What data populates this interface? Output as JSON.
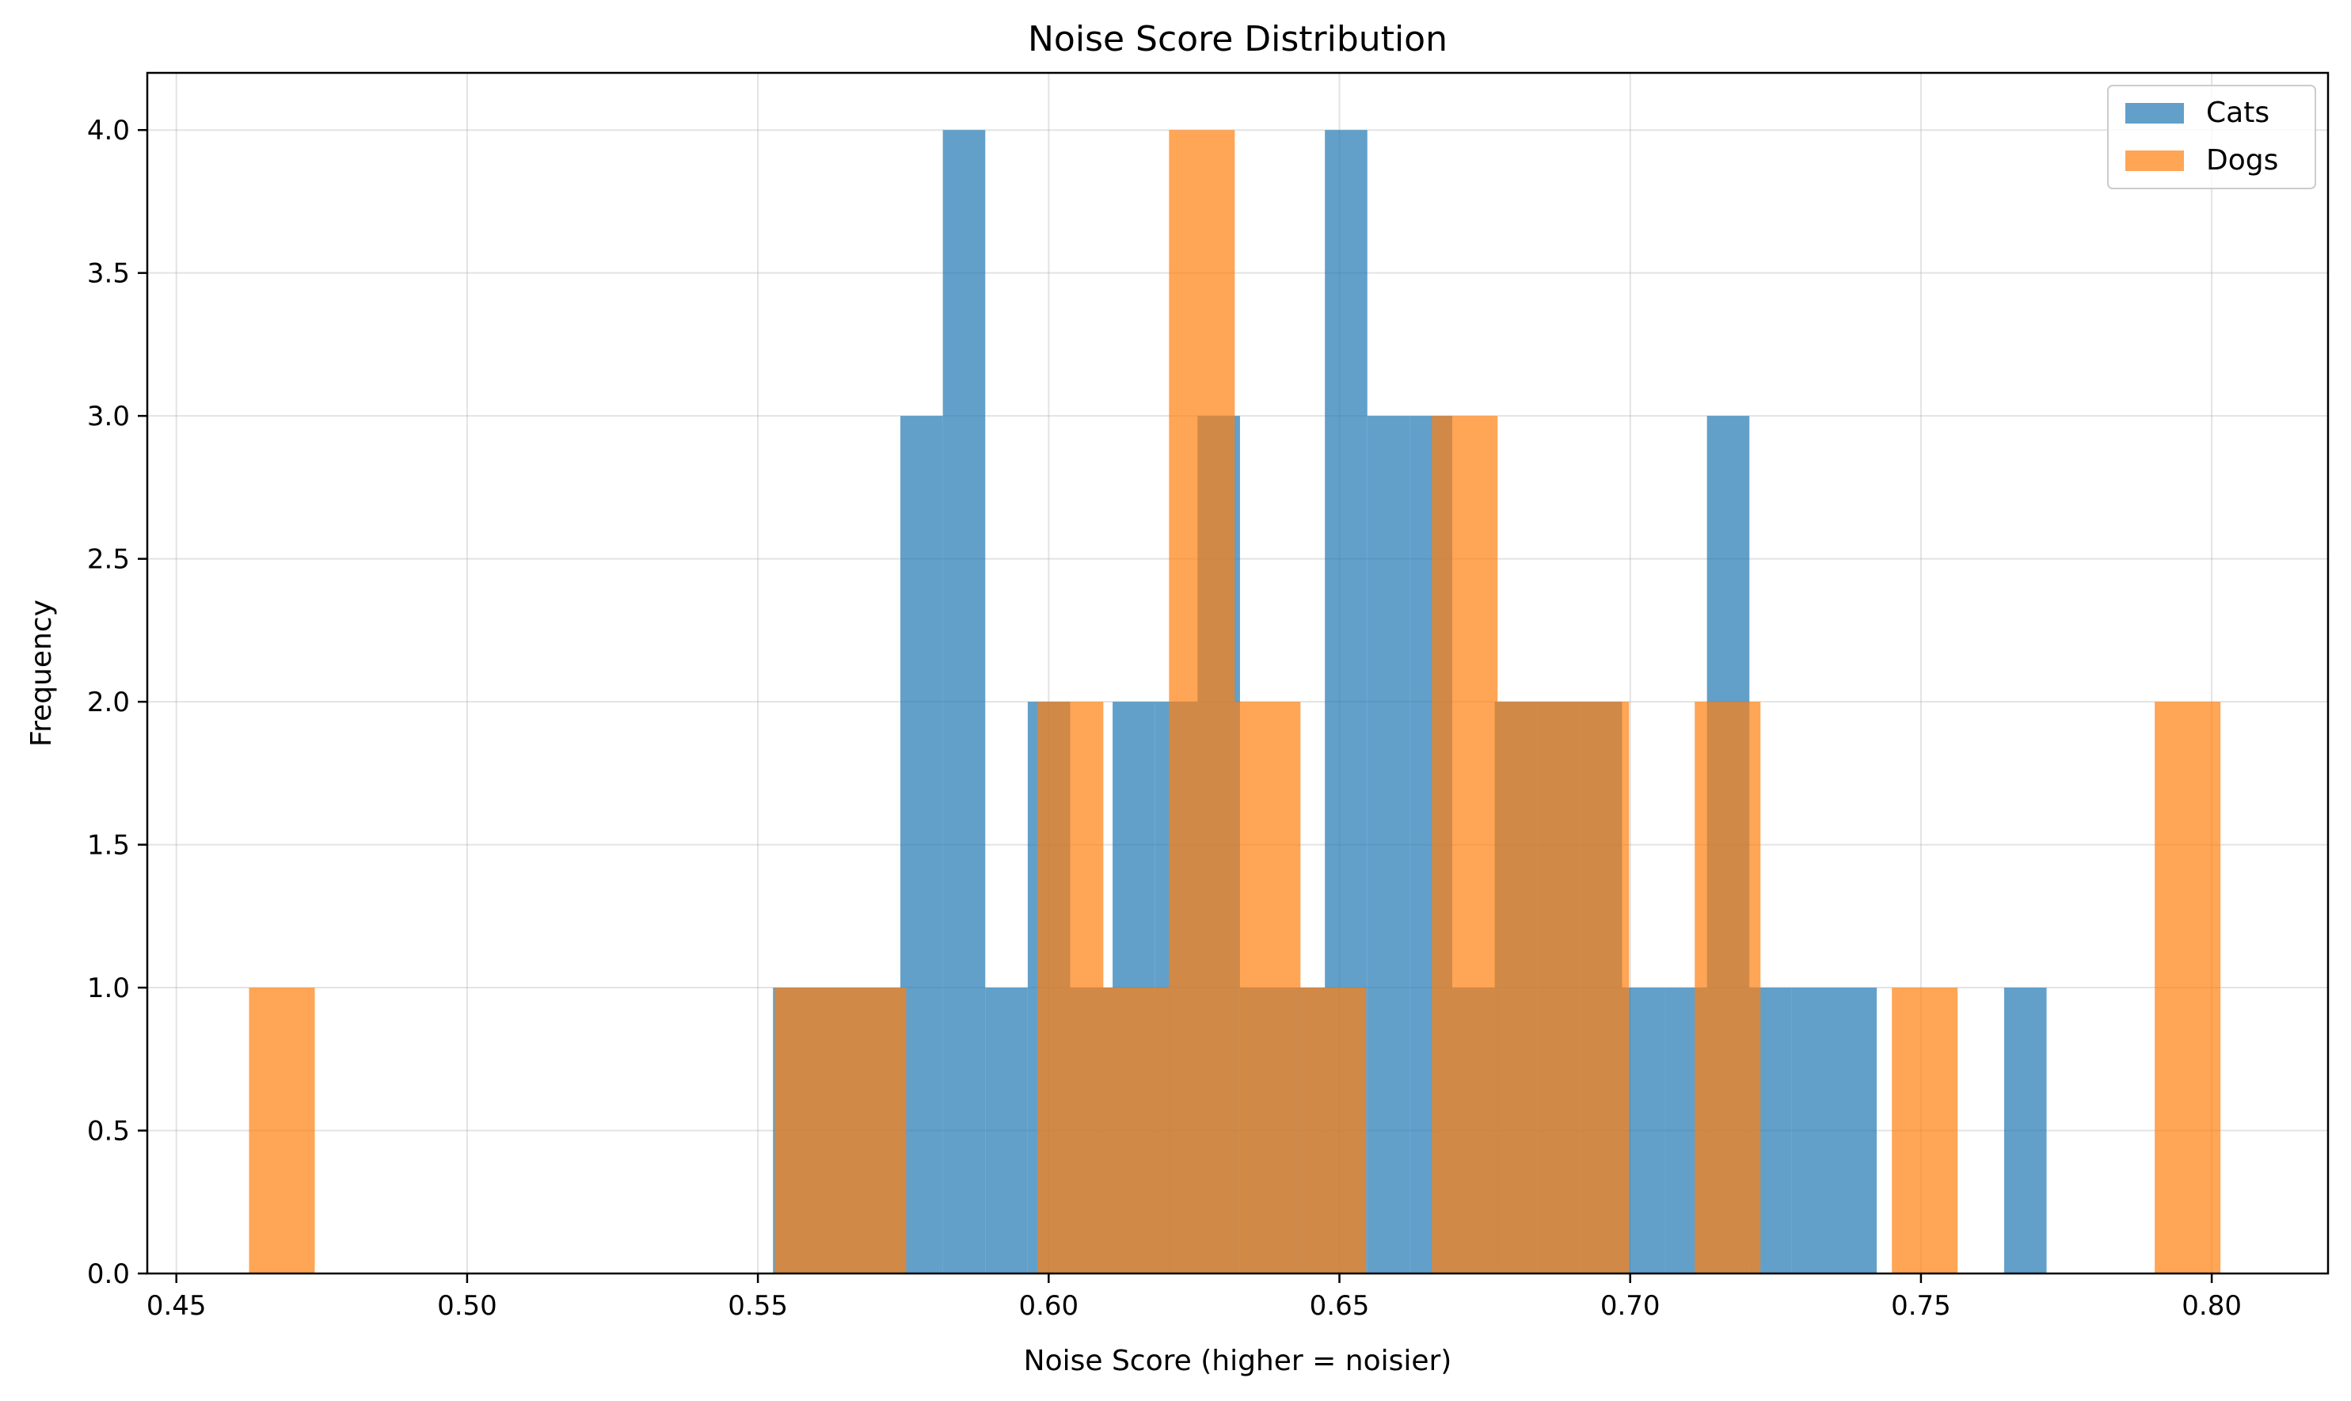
{
  "chart_data": {
    "type": "histogram",
    "title": "Noise Score Distribution",
    "xlabel": "Noise Score (higher = noisier)",
    "ylabel": "Frequency",
    "xlim": [
      0.445,
      0.82
    ],
    "ylim": [
      0,
      4.2
    ],
    "xticks": [
      0.45,
      0.5,
      0.55,
      0.6,
      0.65,
      0.7,
      0.75,
      0.8
    ],
    "xtick_labels": [
      "0.45",
      "0.50",
      "0.55",
      "0.60",
      "0.65",
      "0.70",
      "0.75",
      "0.80"
    ],
    "yticks": [
      0,
      0.5,
      1,
      1.5,
      2,
      2.5,
      3,
      3.5,
      4
    ],
    "ytick_labels": [
      "0.0",
      "0.5",
      "1.0",
      "1.5",
      "2.0",
      "2.5",
      "3.0",
      "3.5",
      "4.0"
    ],
    "grid": true,
    "legend_position": "top-right",
    "series": [
      {
        "name": "Cats",
        "color": "#1f77b4",
        "alpha": 0.7,
        "bins": [
          [
            0.5526,
            0.5599,
            1
          ],
          [
            0.5599,
            0.5672,
            1
          ],
          [
            0.5672,
            0.5745,
            1
          ],
          [
            0.5745,
            0.5818,
            3
          ],
          [
            0.5818,
            0.5891,
            4
          ],
          [
            0.5891,
            0.5964,
            1
          ],
          [
            0.5964,
            0.6037,
            2
          ],
          [
            0.6037,
            0.611,
            1
          ],
          [
            0.611,
            0.6183,
            2
          ],
          [
            0.6183,
            0.6256,
            2
          ],
          [
            0.6256,
            0.6329,
            3
          ],
          [
            0.6329,
            0.6402,
            1
          ],
          [
            0.6402,
            0.6475,
            1
          ],
          [
            0.6475,
            0.6548,
            4
          ],
          [
            0.6548,
            0.6621,
            3
          ],
          [
            0.6621,
            0.6694,
            3
          ],
          [
            0.6694,
            0.6767,
            1
          ],
          [
            0.6767,
            0.684,
            2
          ],
          [
            0.684,
            0.6913,
            2
          ],
          [
            0.6913,
            0.6986,
            2
          ],
          [
            0.6986,
            0.7059,
            1
          ],
          [
            0.7059,
            0.7132,
            1
          ],
          [
            0.7132,
            0.7205,
            3
          ],
          [
            0.7205,
            0.7278,
            1
          ],
          [
            0.7278,
            0.7351,
            1
          ],
          [
            0.7351,
            0.7424,
            1
          ],
          [
            0.7424,
            0.7497,
            0
          ],
          [
            0.7497,
            0.757,
            0
          ],
          [
            0.757,
            0.7643,
            0
          ],
          [
            0.7643,
            0.7716,
            1
          ]
        ]
      },
      {
        "name": "Dogs",
        "color": "#ff7f0e",
        "alpha": 0.7,
        "bins": [
          [
            0.4625,
            0.4738,
            1
          ],
          [
            0.4738,
            0.4851,
            0
          ],
          [
            0.4851,
            0.4964,
            0
          ],
          [
            0.4964,
            0.5077,
            0
          ],
          [
            0.5077,
            0.519,
            0
          ],
          [
            0.519,
            0.5303,
            0
          ],
          [
            0.5303,
            0.5416,
            0
          ],
          [
            0.5416,
            0.5529,
            0
          ],
          [
            0.5529,
            0.5642,
            1
          ],
          [
            0.5642,
            0.5755,
            1
          ],
          [
            0.5755,
            0.5868,
            0
          ],
          [
            0.5868,
            0.5981,
            0
          ],
          [
            0.5981,
            0.6094,
            2
          ],
          [
            0.6094,
            0.6207,
            1
          ],
          [
            0.6207,
            0.632,
            4
          ],
          [
            0.632,
            0.6433,
            2
          ],
          [
            0.6433,
            0.6546,
            1
          ],
          [
            0.6546,
            0.6659,
            0
          ],
          [
            0.6659,
            0.6772,
            3
          ],
          [
            0.6772,
            0.6885,
            2
          ],
          [
            0.6885,
            0.6998,
            2
          ],
          [
            0.6998,
            0.7111,
            0
          ],
          [
            0.7111,
            0.7224,
            2
          ],
          [
            0.7224,
            0.7337,
            0
          ],
          [
            0.7337,
            0.745,
            0
          ],
          [
            0.745,
            0.7563,
            1
          ],
          [
            0.7563,
            0.7676,
            0
          ],
          [
            0.7676,
            0.7789,
            0
          ],
          [
            0.7789,
            0.7902,
            0
          ],
          [
            0.7902,
            0.8015,
            2
          ]
        ]
      }
    ]
  }
}
